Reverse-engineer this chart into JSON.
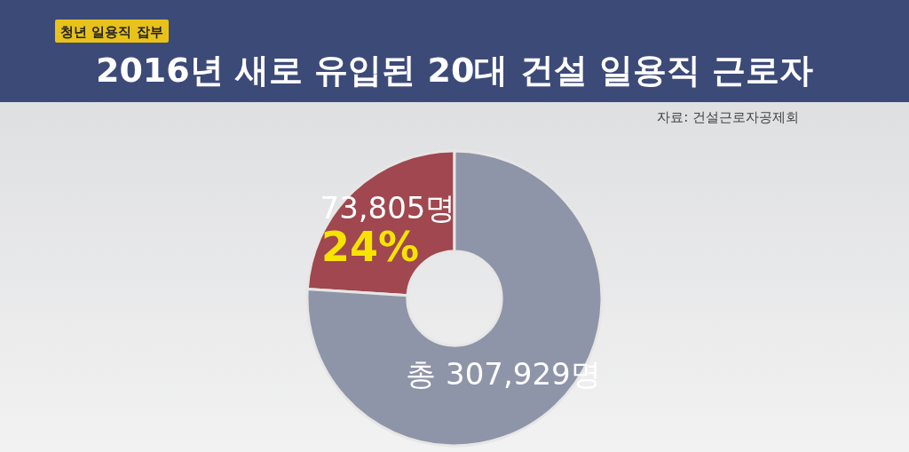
{
  "chart_data": {
    "type": "donut",
    "title": "2016년 새로 유입된 20대 건설 일용직 근로자",
    "annotations": [
      "청년 일용직 잡부",
      "자료: 건설근로자공제회"
    ],
    "categories": [
      null,
      null
    ],
    "values": [
      24,
      76
    ],
    "colors": [
      "#a0474f",
      "#8f95a8"
    ],
    "value_labels": [
      "73,805명\n24%",
      "총 307,929명"
    ]
  }
}
